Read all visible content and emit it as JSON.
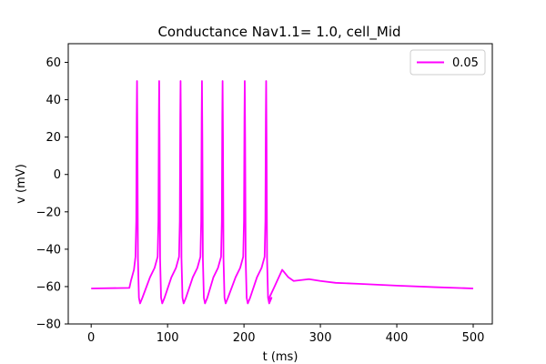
{
  "chart_data": {
    "type": "line",
    "title": "Conductance Nav1.1= 1.0, cell_Mid",
    "xlabel": "t (ms)",
    "ylabel": "v (mV)",
    "xlim": [
      -30,
      525
    ],
    "ylim": [
      -80,
      70
    ],
    "xticks": [
      0,
      100,
      200,
      300,
      400,
      500
    ],
    "yticks": [
      -80,
      -60,
      -40,
      -20,
      0,
      20,
      40,
      60
    ],
    "grid": false,
    "legend_position": "top-right",
    "series": [
      {
        "name": "0.05",
        "color": "#ff00ff",
        "baseline_start": [
          [
            0,
            -61
          ],
          [
            50,
            -60.7
          ]
        ],
        "spike_times": [
          60,
          89,
          117,
          145,
          172,
          201,
          229
        ],
        "spike_peak": 50,
        "trough": -69,
        "tail": [
          [
            232,
            -67
          ],
          [
            240,
            -60
          ],
          [
            250,
            -51
          ],
          [
            258,
            -55
          ],
          [
            265,
            -57
          ],
          [
            275,
            -56.5
          ],
          [
            285,
            -56
          ],
          [
            300,
            -57
          ],
          [
            320,
            -58
          ],
          [
            350,
            -58.5
          ],
          [
            400,
            -59.5
          ],
          [
            450,
            -60.3
          ],
          [
            500,
            -61
          ]
        ]
      }
    ]
  }
}
